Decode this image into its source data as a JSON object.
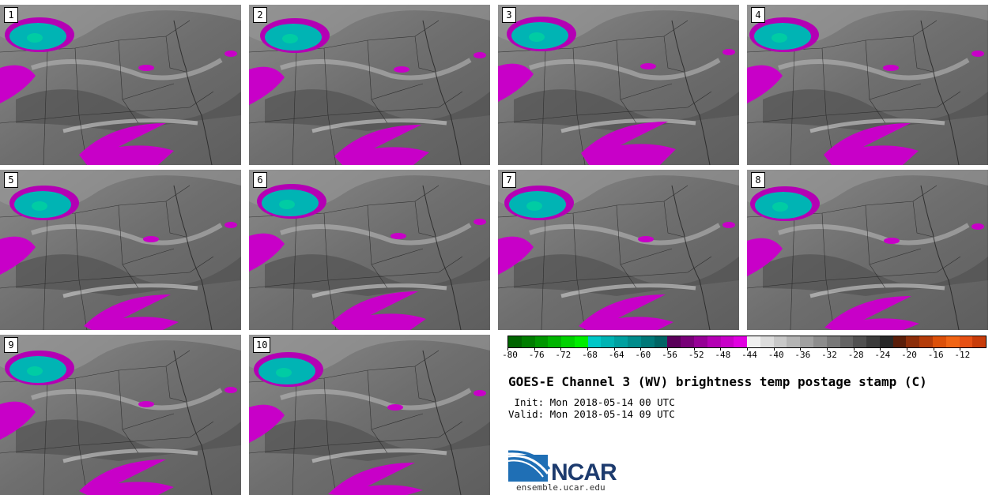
{
  "panels": [
    {
      "label": "1"
    },
    {
      "label": "2"
    },
    {
      "label": "3"
    },
    {
      "label": "4"
    },
    {
      "label": "5"
    },
    {
      "label": "6"
    },
    {
      "label": "7"
    },
    {
      "label": "8"
    },
    {
      "label": "9"
    },
    {
      "label": "10"
    }
  ],
  "colorbar": {
    "tick_labels": [
      "-80",
      "-76",
      "-72",
      "-68",
      "-64",
      "-60",
      "-56",
      "-52",
      "-48",
      "-44",
      "-40",
      "-36",
      "-32",
      "-28",
      "-24",
      "-20",
      "-16",
      "-12"
    ],
    "colors": [
      "#006400",
      "#007d00",
      "#009600",
      "#00b400",
      "#00d200",
      "#00ee00",
      "#00c8c8",
      "#00b4b4",
      "#00a0a0",
      "#008c8c",
      "#007878",
      "#006464",
      "#5a005a",
      "#780078",
      "#960096",
      "#b400b4",
      "#c800c8",
      "#e100e1",
      "#f0f0f0",
      "#dcdcdc",
      "#c8c8c8",
      "#b4b4b4",
      "#a0a0a0",
      "#8c8c8c",
      "#787878",
      "#646464",
      "#505050",
      "#3c3c3c",
      "#282828",
      "#5a1e0a",
      "#8c2d0a",
      "#b43c0a",
      "#dc500a",
      "#f06414",
      "#e65014",
      "#c83c0a"
    ]
  },
  "title": "GOES-E Channel 3 (WV) brightness temp postage stamp (C)",
  "init_text": " Init: Mon 2018-05-14 00 UTC",
  "valid_text": "Valid: Mon 2018-05-14 09 UTC",
  "logo_text": "NCAR",
  "website": "ensemble.ucar.edu"
}
